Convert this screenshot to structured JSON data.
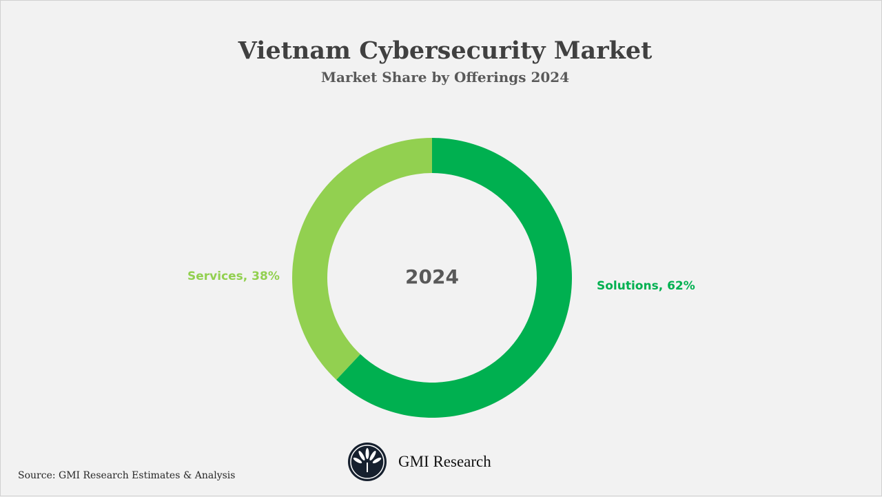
{
  "chart_data": {
    "type": "pie",
    "title": "Vietnam Cybersecurity Market",
    "subtitle": "Market Share by Offerings 2024",
    "center_label": "2024",
    "slices": [
      {
        "name": "Solutions",
        "value": 62,
        "label": "Solutions, 62%",
        "color": "#00B050"
      },
      {
        "name": "Services",
        "value": 38,
        "label": "Services, 38%",
        "color": "#92D050"
      }
    ],
    "donut": true
  },
  "footer": {
    "source": "Source: GMI Research Estimates & Analysis",
    "brand": "GMI Research"
  }
}
